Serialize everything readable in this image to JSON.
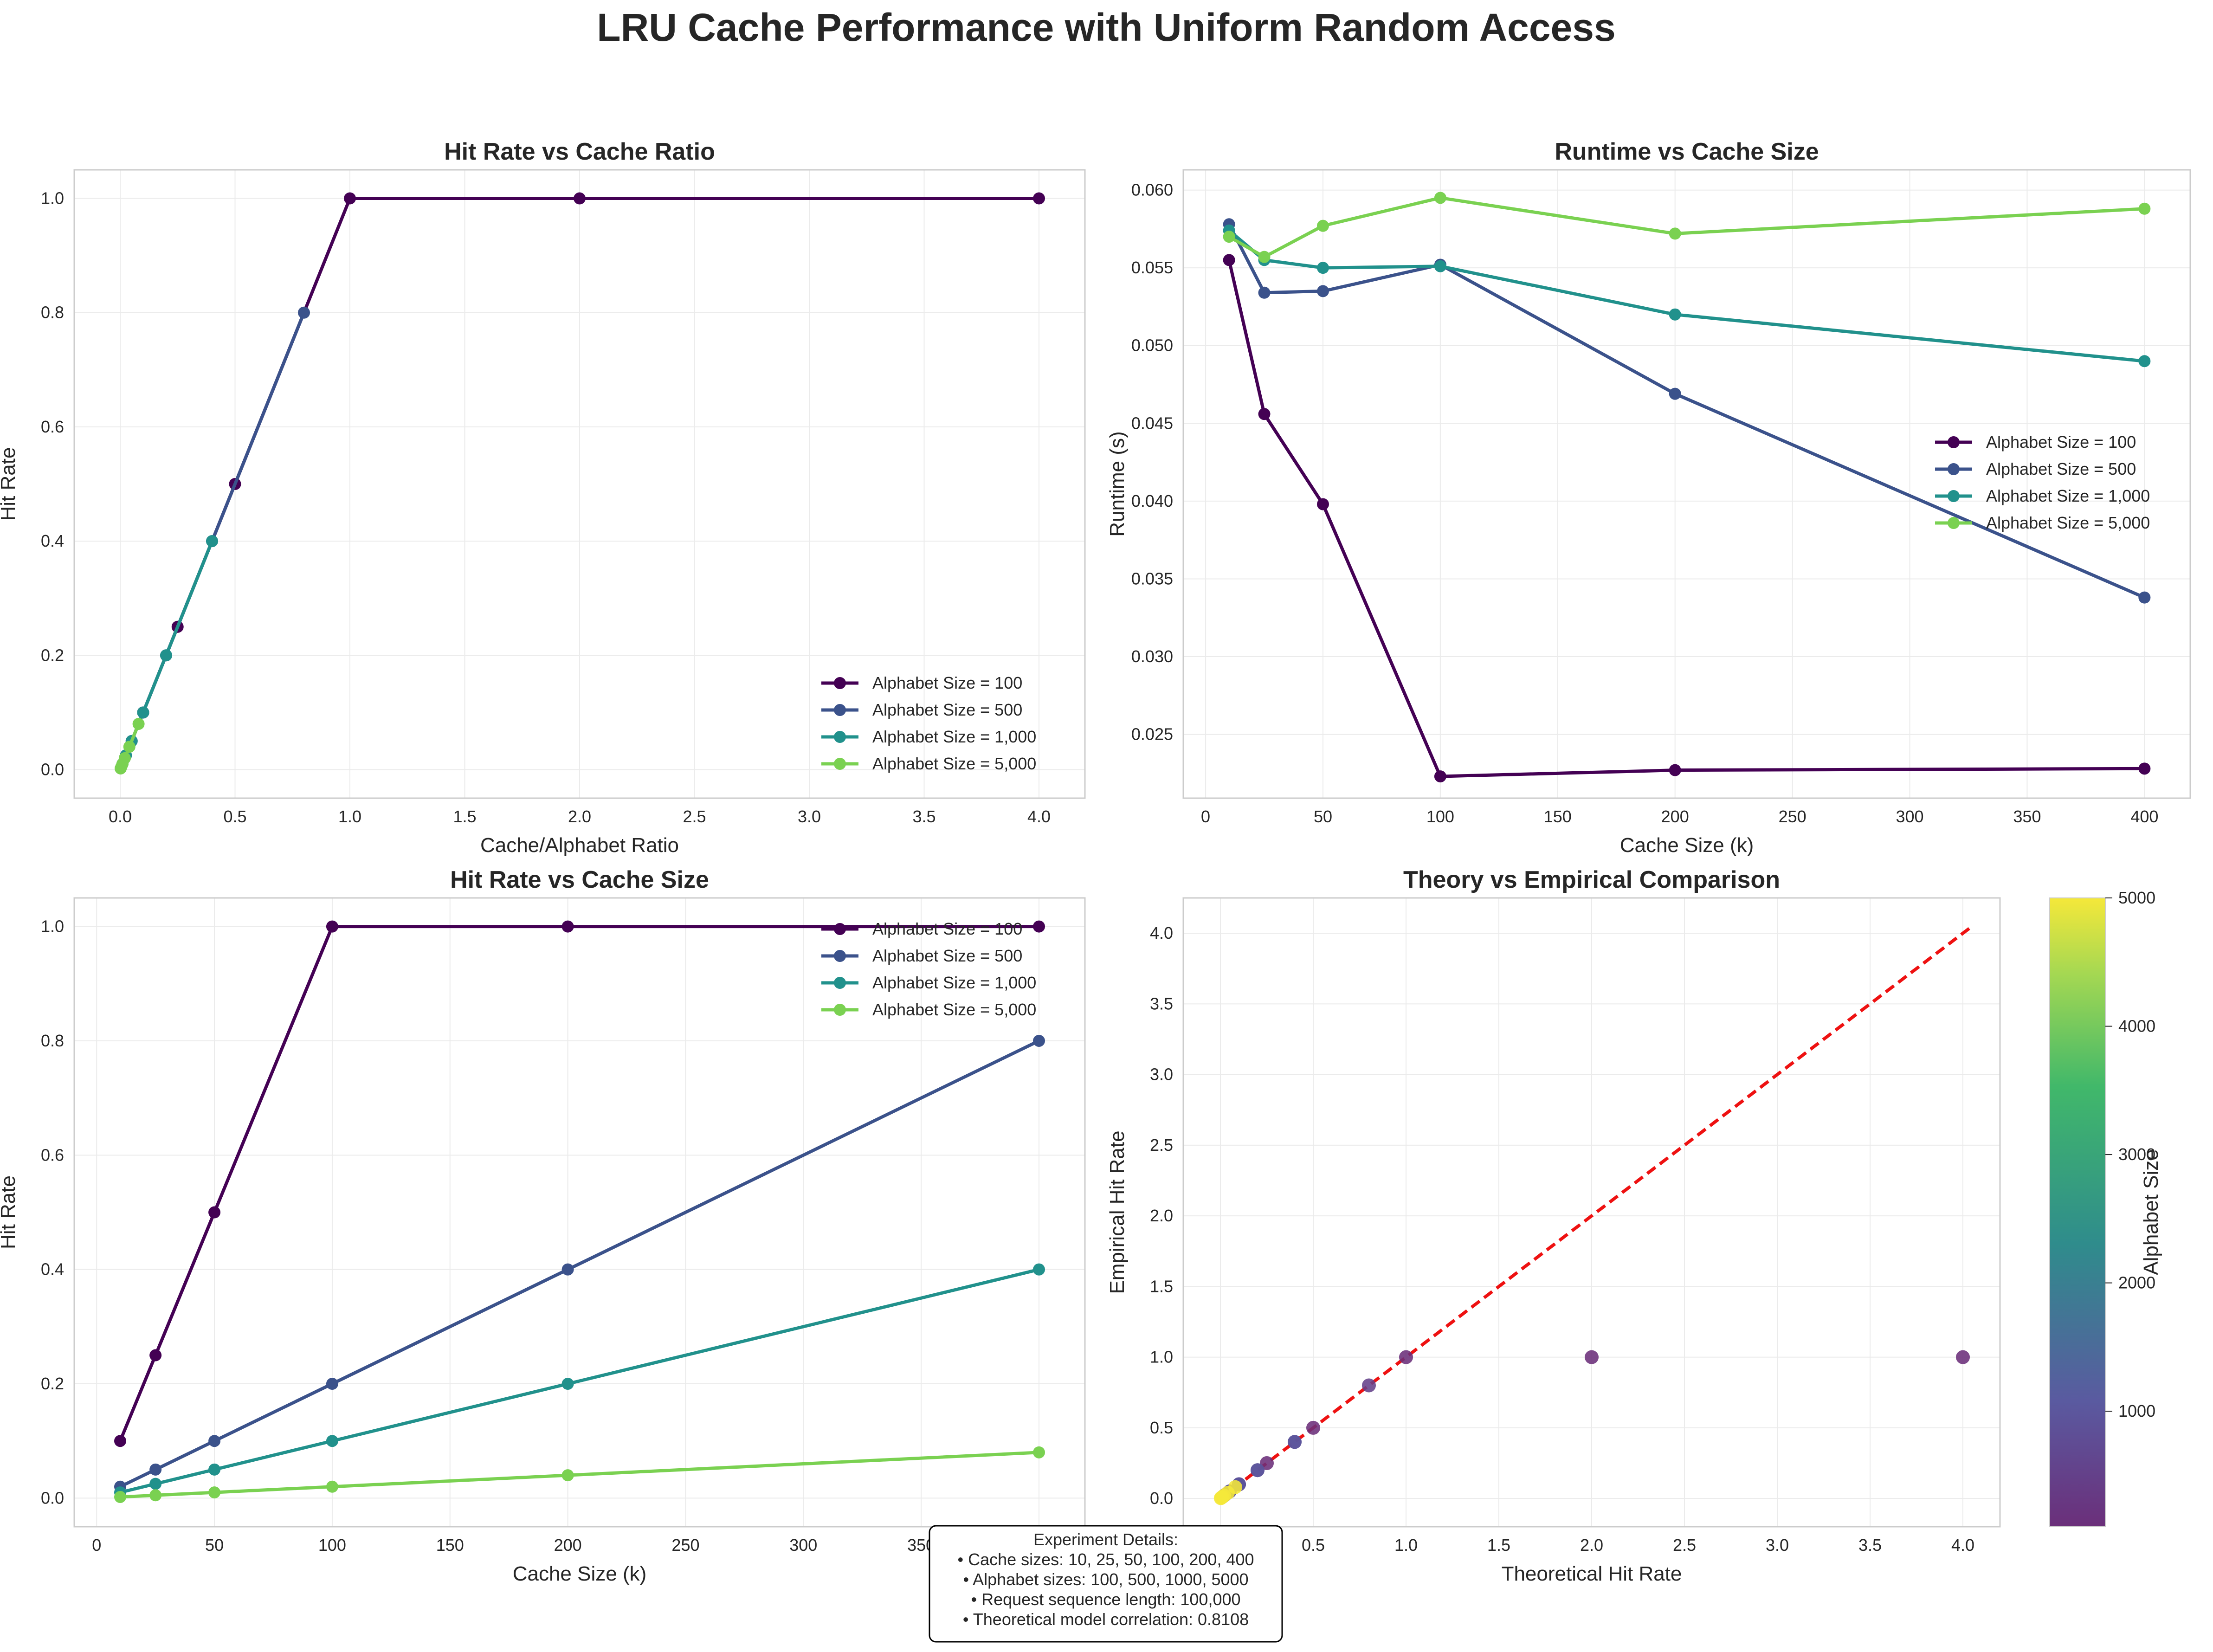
{
  "figure": {
    "suptitle": "LRU Cache Performance with Uniform Random Access",
    "details": {
      "heading": "Experiment Details:",
      "lines": [
        "• Cache sizes: 10, 25, 50, 100, 200, 400",
        "• Alphabet sizes: 100, 500, 1000, 5000",
        "• Request sequence length: 100,000",
        "• Theoretical model correlation: 0.8108"
      ]
    }
  },
  "colors": {
    "alphabet_100": "#440154",
    "alphabet_500": "#3b528b",
    "alphabet_1000": "#21918c",
    "alphabet_5000": "#7ad151",
    "reference_line": "#ee1111"
  },
  "chart_data": [
    {
      "id": "hitrate-vs-ratio",
      "type": "line",
      "title": "Hit Rate vs Cache Ratio",
      "xlabel": "Cache/Alphabet Ratio",
      "ylabel": "Hit Rate",
      "xlim": [
        -0.2,
        4.2
      ],
      "ylim": [
        -0.05,
        1.05
      ],
      "xticks": [
        "0.0",
        "0.5",
        "1.0",
        "1.5",
        "2.0",
        "2.5",
        "3.0",
        "3.5",
        "4.0"
      ],
      "yticks": [
        "0.0",
        "0.2",
        "0.4",
        "0.6",
        "0.8",
        "1.0"
      ],
      "grid": true,
      "legend": "lower-right",
      "series": [
        {
          "name": "Alphabet Size = 100",
          "color_key": "alphabet_100",
          "x": [
            0.1,
            0.25,
            0.5,
            1.0,
            2.0,
            4.0
          ],
          "y": [
            0.1,
            0.25,
            0.5,
            1.0,
            1.0,
            1.0
          ]
        },
        {
          "name": "Alphabet Size = 500",
          "color_key": "alphabet_500",
          "x": [
            0.02,
            0.05,
            0.1,
            0.2,
            0.4,
            0.8
          ],
          "y": [
            0.02,
            0.05,
            0.1,
            0.2,
            0.4,
            0.8
          ]
        },
        {
          "name": "Alphabet Size = 1,000",
          "color_key": "alphabet_1000",
          "x": [
            0.01,
            0.025,
            0.05,
            0.1,
            0.2,
            0.4
          ],
          "y": [
            0.01,
            0.025,
            0.05,
            0.1,
            0.2,
            0.4
          ]
        },
        {
          "name": "Alphabet Size = 5,000",
          "color_key": "alphabet_5000",
          "x": [
            0.002,
            0.005,
            0.01,
            0.02,
            0.04,
            0.08
          ],
          "y": [
            0.002,
            0.005,
            0.01,
            0.02,
            0.04,
            0.08
          ]
        }
      ]
    },
    {
      "id": "runtime-vs-size",
      "type": "line",
      "title": "Runtime vs Cache Size",
      "xlabel": "Cache Size (k)",
      "ylabel": "Runtime (s)",
      "xlim": [
        -9.5,
        419.5
      ],
      "ylim": [
        0.0209,
        0.0613
      ],
      "xticks": [
        "0",
        "50",
        "100",
        "150",
        "200",
        "250",
        "300",
        "350",
        "400"
      ],
      "yticks": [
        "0.025",
        "0.030",
        "0.035",
        "0.040",
        "0.045",
        "0.050",
        "0.055",
        "0.060"
      ],
      "grid": true,
      "legend": "center-right",
      "series": [
        {
          "name": "Alphabet Size = 100",
          "color_key": "alphabet_100",
          "x": [
            10,
            25,
            50,
            100,
            200,
            400
          ],
          "y": [
            0.0555,
            0.0456,
            0.0398,
            0.0223,
            0.0227,
            0.0228
          ]
        },
        {
          "name": "Alphabet Size = 500",
          "color_key": "alphabet_500",
          "x": [
            10,
            25,
            50,
            100,
            200,
            400
          ],
          "y": [
            0.0578,
            0.0534,
            0.0535,
            0.0552,
            0.0469,
            0.0338
          ]
        },
        {
          "name": "Alphabet Size = 1,000",
          "color_key": "alphabet_1000",
          "x": [
            10,
            25,
            50,
            100,
            200,
            400
          ],
          "y": [
            0.0574,
            0.0555,
            0.055,
            0.0551,
            0.052,
            0.049
          ]
        },
        {
          "name": "Alphabet Size = 5,000",
          "color_key": "alphabet_5000",
          "x": [
            10,
            25,
            50,
            100,
            200,
            400
          ],
          "y": [
            0.057,
            0.0557,
            0.0577,
            0.0595,
            0.0572,
            0.0588
          ]
        }
      ]
    },
    {
      "id": "hitrate-vs-size",
      "type": "line",
      "title": "Hit Rate vs Cache Size",
      "xlabel": "Cache Size (k)",
      "ylabel": "Hit Rate",
      "xlim": [
        -9.5,
        419.5
      ],
      "ylim": [
        -0.05,
        1.05
      ],
      "xticks": [
        "0",
        "50",
        "100",
        "150",
        "200",
        "250",
        "300",
        "350",
        "400"
      ],
      "yticks": [
        "0.0",
        "0.2",
        "0.4",
        "0.6",
        "0.8",
        "1.0"
      ],
      "grid": true,
      "legend": "top-right",
      "series": [
        {
          "name": "Alphabet Size = 100",
          "color_key": "alphabet_100",
          "x": [
            10,
            25,
            50,
            100,
            200,
            400
          ],
          "y": [
            0.1,
            0.25,
            0.5,
            1.0,
            1.0,
            1.0
          ]
        },
        {
          "name": "Alphabet Size = 500",
          "color_key": "alphabet_500",
          "x": [
            10,
            25,
            50,
            100,
            200,
            400
          ],
          "y": [
            0.02,
            0.05,
            0.1,
            0.2,
            0.4,
            0.8
          ]
        },
        {
          "name": "Alphabet Size = 1,000",
          "color_key": "alphabet_1000",
          "x": [
            10,
            25,
            50,
            100,
            200,
            400
          ],
          "y": [
            0.01,
            0.025,
            0.05,
            0.1,
            0.2,
            0.4
          ]
        },
        {
          "name": "Alphabet Size = 5,000",
          "color_key": "alphabet_5000",
          "x": [
            10,
            25,
            50,
            100,
            200,
            400
          ],
          "y": [
            0.002,
            0.005,
            0.01,
            0.02,
            0.04,
            0.08
          ]
        }
      ]
    },
    {
      "id": "theory-vs-empirical",
      "type": "scatter",
      "title": "Theory vs Empirical Comparison",
      "xlabel": "Theoretical Hit Rate",
      "ylabel": "Empirical Hit Rate",
      "xlim": [
        -0.2,
        4.2
      ],
      "ylim": [
        -0.2,
        4.25
      ],
      "xticks": [
        "0.0",
        "0.5",
        "1.0",
        "1.5",
        "2.0",
        "2.5",
        "3.0",
        "3.5",
        "4.0"
      ],
      "yticks": [
        "0.0",
        "0.5",
        "1.0",
        "1.5",
        "2.0",
        "2.5",
        "3.0",
        "3.5",
        "4.0"
      ],
      "grid": true,
      "reference_line": {
        "x": [
          0.0,
          4.05
        ],
        "y": [
          0.0,
          4.05
        ],
        "style": "dashed"
      },
      "colorbar": {
        "label": "Alphabet Size",
        "range": [
          100,
          5000
        ],
        "ticks": [
          "1000",
          "2000",
          "3000",
          "4000",
          "5000"
        ]
      },
      "points": [
        {
          "x": 0.1,
          "y": 0.1,
          "alphabet": 100
        },
        {
          "x": 0.25,
          "y": 0.25,
          "alphabet": 100
        },
        {
          "x": 0.5,
          "y": 0.5,
          "alphabet": 100
        },
        {
          "x": 1.0,
          "y": 1.0,
          "alphabet": 100
        },
        {
          "x": 2.0,
          "y": 1.0,
          "alphabet": 100
        },
        {
          "x": 4.0,
          "y": 1.0,
          "alphabet": 100
        },
        {
          "x": 0.02,
          "y": 0.02,
          "alphabet": 500
        },
        {
          "x": 0.05,
          "y": 0.05,
          "alphabet": 500
        },
        {
          "x": 0.1,
          "y": 0.1,
          "alphabet": 500
        },
        {
          "x": 0.2,
          "y": 0.2,
          "alphabet": 500
        },
        {
          "x": 0.4,
          "y": 0.4,
          "alphabet": 500
        },
        {
          "x": 0.8,
          "y": 0.8,
          "alphabet": 500
        },
        {
          "x": 0.01,
          "y": 0.01,
          "alphabet": 1000
        },
        {
          "x": 0.025,
          "y": 0.025,
          "alphabet": 1000
        },
        {
          "x": 0.05,
          "y": 0.05,
          "alphabet": 1000
        },
        {
          "x": 0.1,
          "y": 0.1,
          "alphabet": 1000
        },
        {
          "x": 0.2,
          "y": 0.2,
          "alphabet": 1000
        },
        {
          "x": 0.4,
          "y": 0.4,
          "alphabet": 1000
        },
        {
          "x": 0.002,
          "y": 0.002,
          "alphabet": 5000
        },
        {
          "x": 0.005,
          "y": 0.005,
          "alphabet": 5000
        },
        {
          "x": 0.01,
          "y": 0.01,
          "alphabet": 5000
        },
        {
          "x": 0.02,
          "y": 0.02,
          "alphabet": 5000
        },
        {
          "x": 0.04,
          "y": 0.04,
          "alphabet": 5000
        },
        {
          "x": 0.08,
          "y": 0.08,
          "alphabet": 5000
        }
      ]
    }
  ]
}
